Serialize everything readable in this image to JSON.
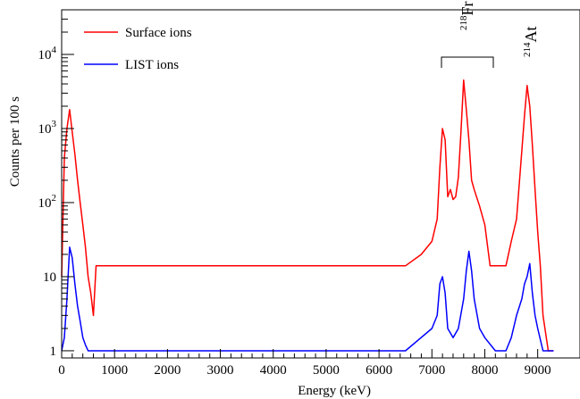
{
  "chart_data": {
    "type": "line",
    "title": "",
    "xlabel": "Energy (keV)",
    "ylabel": "Counts per 100 s",
    "xlim": [
      0,
      9800
    ],
    "ylim": [
      0.8,
      40000
    ],
    "y_scale": "log",
    "x_ticks": [
      0,
      1000,
      2000,
      3000,
      4000,
      5000,
      6000,
      7000,
      8000,
      9000
    ],
    "x_tick_labels": [
      "0",
      "1000",
      "2000",
      "3000",
      "4000",
      "5000",
      "6000",
      "7000",
      "8000",
      "9000"
    ],
    "y_ticks": [
      1,
      10,
      100,
      1000,
      10000
    ],
    "y_tick_labels": [
      {
        "base": "1",
        "exp": ""
      },
      {
        "base": "10",
        "exp": ""
      },
      {
        "base": "10",
        "exp": "2"
      },
      {
        "base": "10",
        "exp": "3"
      },
      {
        "base": "10",
        "exp": "4"
      }
    ],
    "legend_position": "top-left",
    "series": [
      {
        "name": "Surface ions",
        "color": "#ff0000",
        "x": [
          0,
          50,
          100,
          150,
          200,
          250,
          300,
          350,
          400,
          450,
          500,
          550,
          600,
          650,
          700,
          800,
          1000,
          2000,
          3000,
          4000,
          5000,
          6000,
          6500,
          6800,
          7000,
          7100,
          7150,
          7200,
          7250,
          7300,
          7350,
          7400,
          7450,
          7500,
          7550,
          7600,
          7650,
          7700,
          7750,
          7800,
          7900,
          8000,
          8100,
          8150,
          8200,
          8300,
          8400,
          8500,
          8600,
          8700,
          8750,
          8800,
          8850,
          8900,
          8950,
          9000,
          9050,
          9100,
          9200,
          9300
        ],
        "y": [
          10,
          400,
          1000,
          1800,
          900,
          450,
          200,
          100,
          50,
          25,
          10,
          6,
          3,
          14,
          14,
          14,
          14,
          14,
          14,
          14,
          14,
          14,
          14,
          20,
          30,
          60,
          300,
          1000,
          700,
          120,
          150,
          110,
          120,
          220,
          900,
          4500,
          1800,
          700,
          200,
          150,
          90,
          50,
          14,
          14,
          14,
          14,
          14,
          30,
          60,
          500,
          1500,
          3800,
          2000,
          600,
          150,
          40,
          14,
          3,
          1,
          1
        ]
      },
      {
        "name": "LIST ions",
        "color": "#0000ff",
        "x": [
          0,
          50,
          100,
          150,
          200,
          250,
          300,
          350,
          400,
          450,
          500,
          600,
          700,
          1000,
          2000,
          3000,
          4000,
          5000,
          6000,
          6500,
          7000,
          7100,
          7150,
          7200,
          7250,
          7300,
          7400,
          7500,
          7600,
          7650,
          7700,
          7750,
          7800,
          7900,
          8000,
          8200,
          8400,
          8500,
          8600,
          8700,
          8750,
          8800,
          8850,
          8900,
          8950,
          9000,
          9100,
          9300
        ],
        "y": [
          1,
          1.5,
          5,
          25,
          18,
          8,
          4,
          2.5,
          1.5,
          1.2,
          1,
          1,
          1,
          1,
          1,
          1,
          1,
          1,
          1,
          1,
          2,
          3,
          8,
          10,
          6,
          2,
          1.5,
          2,
          5,
          12,
          22,
          12,
          5,
          2,
          1.5,
          1,
          1,
          1.5,
          3,
          5,
          8,
          10,
          15,
          6,
          3,
          2,
          1,
          1
        ]
      }
    ],
    "annotations": [
      {
        "label": "Fr",
        "mass": "218",
        "x_range": [
          7100,
          8100
        ]
      },
      {
        "label": "At",
        "mass": "214",
        "x": 8750
      }
    ]
  }
}
